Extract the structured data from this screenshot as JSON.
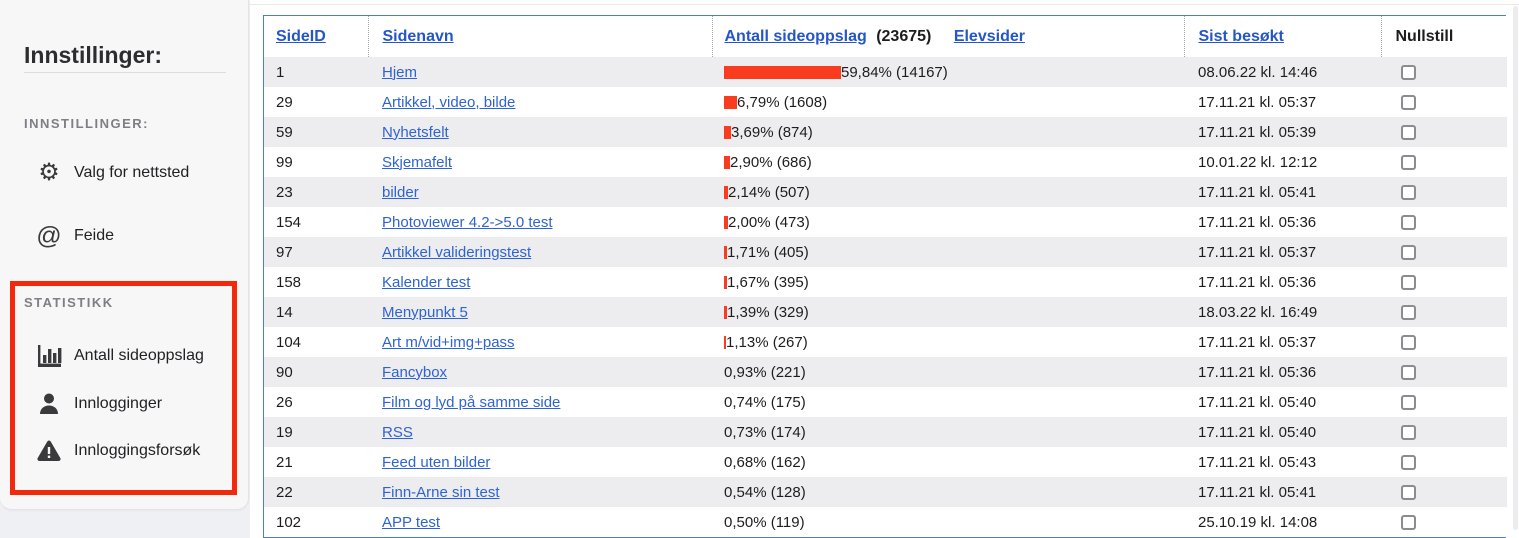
{
  "sidebar": {
    "title": "Innstillinger:",
    "settings_label": "INNSTILLINGER:",
    "items": [
      {
        "icon": "gear-icon",
        "label": "Valg for nettsted"
      },
      {
        "icon": "at-icon",
        "label": "Feide"
      }
    ],
    "statistics": {
      "label": "STATISTIKK",
      "highlight_color": "#f4290c",
      "items": [
        {
          "icon": "bar-chart-icon",
          "label": "Antall sideoppslag"
        },
        {
          "icon": "person-icon",
          "label": "Innlogginger"
        },
        {
          "icon": "warning-icon",
          "label": "Innloggingsforsøk"
        }
      ]
    }
  },
  "table": {
    "headers": {
      "sideid": "SideID",
      "sidenavn": "Sidenavn",
      "views_link": "Antall sideoppslag",
      "views_total": "(23675)",
      "elevsider": "Elevsider",
      "visited": "Sist besøkt",
      "nullstill": "Nullstill"
    },
    "rows": [
      {
        "id": "1",
        "name": "Hjem",
        "pct": 59.84,
        "views": "59,84% (14167)",
        "visited": "08.06.22 kl. 14:46"
      },
      {
        "id": "29",
        "name": "Artikkel, video, bilde",
        "pct": 6.79,
        "views": "6,79% (1608)",
        "visited": "17.11.21 kl. 05:37"
      },
      {
        "id": "59",
        "name": "Nyhetsfelt",
        "pct": 3.69,
        "views": "3,69% (874)",
        "visited": "17.11.21 kl. 05:39"
      },
      {
        "id": "99",
        "name": "Skjemafelt",
        "pct": 2.9,
        "views": "2,90% (686)",
        "visited": "10.01.22 kl. 12:12"
      },
      {
        "id": "23",
        "name": "bilder",
        "pct": 2.14,
        "views": "2,14% (507)",
        "visited": "17.11.21 kl. 05:41"
      },
      {
        "id": "154",
        "name": "Photoviewer 4.2->5.0 test",
        "pct": 2.0,
        "views": "2,00% (473)",
        "visited": "17.11.21 kl. 05:36"
      },
      {
        "id": "97",
        "name": "Artikkel valideringstest",
        "pct": 1.71,
        "views": "1,71% (405)",
        "visited": "17.11.21 kl. 05:37"
      },
      {
        "id": "158",
        "name": "Kalender test",
        "pct": 1.67,
        "views": "1,67% (395)",
        "visited": "17.11.21 kl. 05:36"
      },
      {
        "id": "14",
        "name": "Menypunkt 5",
        "pct": 1.39,
        "views": "1,39% (329)",
        "visited": "18.03.22 kl. 16:49"
      },
      {
        "id": "104",
        "name": "Art m/vid+img+pass",
        "pct": 1.13,
        "views": "1,13% (267)",
        "visited": "17.11.21 kl. 05:37"
      },
      {
        "id": "90",
        "name": "Fancybox",
        "pct": 0.93,
        "views": "0,93% (221)",
        "visited": "17.11.21 kl. 05:36"
      },
      {
        "id": "26",
        "name": "Film og lyd på samme side",
        "pct": 0.74,
        "views": "0,74% (175)",
        "visited": "17.11.21 kl. 05:40"
      },
      {
        "id": "19",
        "name": "RSS",
        "pct": 0.73,
        "views": "0,73% (174)",
        "visited": "17.11.21 kl. 05:40"
      },
      {
        "id": "21",
        "name": "Feed uten bilder",
        "pct": 0.68,
        "views": "0,68% (162)",
        "visited": "17.11.21 kl. 05:43"
      },
      {
        "id": "22",
        "name": "Finn-Arne sin test",
        "pct": 0.54,
        "views": "0,54% (128)",
        "visited": "17.11.21 kl. 05:41"
      },
      {
        "id": "102",
        "name": "APP test",
        "pct": 0.5,
        "views": "0,50% (119)",
        "visited": "25.10.19 kl. 14:08"
      }
    ]
  },
  "colors": {
    "table_border_blue": "#4b7ed1",
    "header_link_blue": "#2456c8",
    "row_link_blue": "#2e63d2",
    "bar_red": "#f93b20",
    "highlight_red": "#f4290c",
    "row_stripe": "#ededef"
  }
}
